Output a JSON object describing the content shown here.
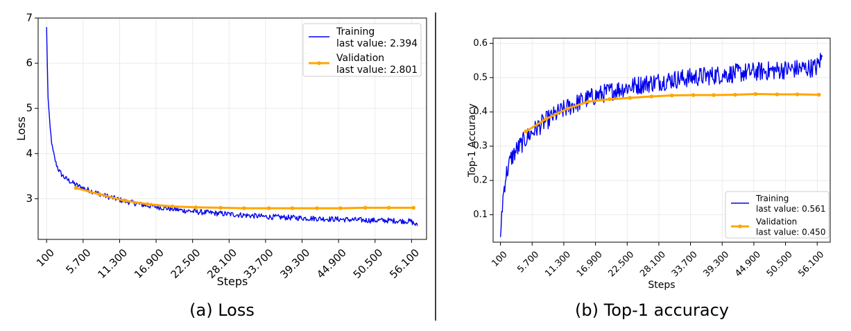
{
  "chart_data": [
    {
      "type": "line",
      "caption": "(a) Loss",
      "xlabel": "Steps",
      "ylabel": "Loss",
      "xlim": [
        -1200,
        58400
      ],
      "ylim": [
        2.1,
        7.0
      ],
      "grid": true,
      "legend_placement": "top-right",
      "x_ticks": [
        100,
        5700,
        11300,
        16900,
        22500,
        28100,
        33700,
        39300,
        44900,
        50500,
        56100
      ],
      "x_tick_labels": [
        "100",
        "5.700",
        "11.300",
        "16.900",
        "22.500",
        "28.100",
        "33.700",
        "39.300",
        "44.900",
        "50.500",
        "56.100"
      ],
      "y_ticks": [
        3,
        4,
        5,
        6,
        7
      ],
      "y_tick_labels": [
        "3",
        "4",
        "5",
        "6",
        "7"
      ],
      "series": [
        {
          "name": "Training",
          "legend_detail": "last value: 2.394",
          "color": "#0000ee",
          "marker": "none",
          "x": [
            100,
            300,
            600,
            1000,
            1500,
            2000,
            2500,
            3000,
            4000,
            5000,
            6000,
            7000,
            8000,
            9000,
            10000,
            11000,
            12000,
            13000,
            14000,
            15000,
            16000,
            17000,
            18000,
            19000,
            20000,
            21000,
            22000,
            23000,
            24000,
            25000,
            26000,
            28000,
            30000,
            32000,
            34000,
            36000,
            38000,
            40000,
            42000,
            44000,
            46000,
            48000,
            50000,
            52000,
            54000,
            56000,
            57000
          ],
          "y": [
            6.8,
            5.3,
            4.6,
            4.1,
            3.8,
            3.62,
            3.52,
            3.45,
            3.36,
            3.28,
            3.22,
            3.17,
            3.12,
            3.07,
            3.03,
            2.99,
            2.95,
            2.92,
            2.89,
            2.86,
            2.84,
            2.82,
            2.8,
            2.78,
            2.76,
            2.74,
            2.73,
            2.71,
            2.7,
            2.69,
            2.68,
            2.66,
            2.64,
            2.62,
            2.6,
            2.59,
            2.58,
            2.57,
            2.56,
            2.55,
            2.54,
            2.53,
            2.52,
            2.52,
            2.51,
            2.5,
            2.4
          ],
          "noise": 0.06
        },
        {
          "name": "Validation",
          "legend_detail": "last value: 2.801",
          "color": "#ffa500",
          "marker": "circle",
          "x": [
            4600,
            8200,
            12000,
            15600,
            19400,
            23000,
            26800,
            30400,
            34200,
            37800,
            41600,
            45200,
            49000,
            52600,
            56400
          ],
          "y": [
            3.24,
            3.1,
            2.96,
            2.88,
            2.83,
            2.81,
            2.8,
            2.79,
            2.79,
            2.79,
            2.79,
            2.79,
            2.8,
            2.8,
            2.8
          ]
        }
      ]
    },
    {
      "type": "line",
      "caption": "(b) Top-1 accuracy",
      "xlabel": "Steps",
      "ylabel": "Top-1 Accuracy",
      "xlim": [
        -1200,
        58400
      ],
      "ylim": [
        0.02,
        0.615
      ],
      "grid": true,
      "legend_placement": "bottom-right",
      "x_ticks": [
        100,
        5700,
        11300,
        16900,
        22500,
        28100,
        33700,
        39300,
        44900,
        50500,
        56100
      ],
      "x_tick_labels": [
        "100",
        "5.700",
        "11.300",
        "16.900",
        "22.500",
        "28.100",
        "33.700",
        "39.300",
        "44.900",
        "50.500",
        "56.100"
      ],
      "y_ticks": [
        0.1,
        0.2,
        0.3,
        0.4,
        0.5,
        0.6
      ],
      "y_tick_labels": [
        "0.1",
        "0.2",
        "0.3",
        "0.4",
        "0.5",
        "0.6"
      ],
      "series": [
        {
          "name": "Training",
          "legend_detail": "last value: 0.561",
          "color": "#0000ee",
          "marker": "none",
          "x": [
            100,
            300,
            600,
            1000,
            1500,
            2000,
            3000,
            4000,
            5000,
            6000,
            7000,
            8000,
            9000,
            10000,
            11000,
            12000,
            13000,
            14000,
            15000,
            16000,
            17000,
            18000,
            19000,
            20000,
            22000,
            24000,
            26000,
            28000,
            30000,
            32000,
            34000,
            36000,
            38000,
            40000,
            42000,
            44000,
            46000,
            48000,
            50000,
            52000,
            54000,
            56000,
            57000
          ],
          "y": [
            0.035,
            0.1,
            0.16,
            0.21,
            0.24,
            0.265,
            0.29,
            0.31,
            0.33,
            0.345,
            0.36,
            0.372,
            0.383,
            0.394,
            0.404,
            0.413,
            0.421,
            0.428,
            0.435,
            0.441,
            0.447,
            0.452,
            0.457,
            0.462,
            0.47,
            0.477,
            0.483,
            0.488,
            0.493,
            0.497,
            0.5,
            0.504,
            0.507,
            0.51,
            0.513,
            0.516,
            0.518,
            0.52,
            0.523,
            0.525,
            0.527,
            0.53,
            0.561
          ],
          "noise": 0.028
        },
        {
          "name": "Validation",
          "legend_detail": "last value: 0.450",
          "color": "#ffa500",
          "marker": "circle",
          "x": [
            4600,
            8200,
            12000,
            15600,
            19400,
            23000,
            26800,
            30400,
            34200,
            37800,
            41600,
            45200,
            49000,
            52600,
            56400
          ],
          "y": [
            0.343,
            0.38,
            0.41,
            0.43,
            0.437,
            0.441,
            0.445,
            0.448,
            0.449,
            0.449,
            0.45,
            0.452,
            0.451,
            0.451,
            0.45
          ]
        }
      ]
    }
  ]
}
